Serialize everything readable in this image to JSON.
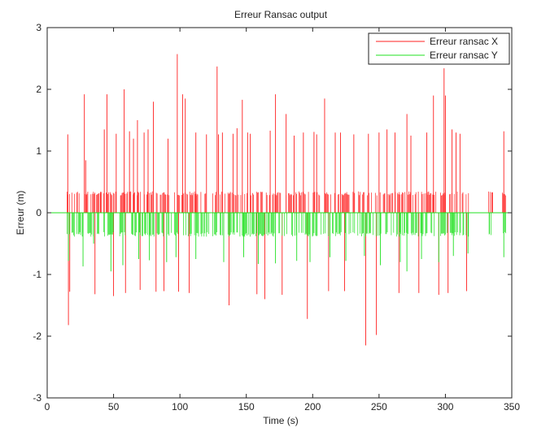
{
  "chart_data": {
    "type": "line",
    "title": "Erreur Ransac output",
    "xlabel": "Time (s)",
    "ylabel": "Erreur (m)",
    "xlim": [
      0,
      350
    ],
    "ylim": [
      -3,
      3
    ],
    "xticks": [
      0,
      50,
      100,
      150,
      200,
      250,
      300,
      350
    ],
    "yticks": [
      -3,
      -2,
      -1,
      0,
      1,
      2,
      3
    ],
    "grid": false,
    "legend_position": "top-right",
    "series": [
      {
        "name": "Erreur ransac X",
        "color": "#ff2020",
        "style": "spikes",
        "baseline": 0,
        "spikes": [
          [
            15.5,
            1.27
          ],
          [
            16,
            -1.82
          ],
          [
            17,
            -1.28
          ],
          [
            28,
            1.92
          ],
          [
            29,
            0.85
          ],
          [
            36,
            -1.32
          ],
          [
            40,
            0.32
          ],
          [
            43,
            1.35
          ],
          [
            45,
            1.92
          ],
          [
            50,
            -1.35
          ],
          [
            52,
            1.28
          ],
          [
            58,
            2.0
          ],
          [
            59,
            -1.3
          ],
          [
            62,
            1.32
          ],
          [
            65,
            1.2
          ],
          [
            68,
            1.5
          ],
          [
            70,
            -1.25
          ],
          [
            73,
            1.3
          ],
          [
            76,
            1.35
          ],
          [
            80,
            1.8
          ],
          [
            82,
            -1.28
          ],
          [
            88,
            -1.27
          ],
          [
            91,
            1.2
          ],
          [
            98,
            2.57
          ],
          [
            99,
            -1.28
          ],
          [
            102,
            1.92
          ],
          [
            104,
            1.85
          ],
          [
            107,
            -1.3
          ],
          [
            112,
            1.3
          ],
          [
            120,
            1.27
          ],
          [
            128,
            2.37
          ],
          [
            129,
            1.27
          ],
          [
            132,
            1.3
          ],
          [
            137,
            -1.5
          ],
          [
            140,
            1.28
          ],
          [
            143,
            1.37
          ],
          [
            147,
            1.83
          ],
          [
            151,
            1.3
          ],
          [
            153,
            1.28
          ],
          [
            158,
            -1.32
          ],
          [
            164,
            -1.4
          ],
          [
            168,
            1.33
          ],
          [
            172,
            1.92
          ],
          [
            177,
            -1.33
          ],
          [
            180,
            1.6
          ],
          [
            186,
            1.25
          ],
          [
            193,
            1.3
          ],
          [
            196,
            -1.72
          ],
          [
            201,
            1.31
          ],
          [
            203,
            1.27
          ],
          [
            209,
            1.85
          ],
          [
            212,
            -1.27
          ],
          [
            217,
            1.3
          ],
          [
            221,
            1.3
          ],
          [
            224,
            -1.27
          ],
          [
            231,
            1.27
          ],
          [
            240,
            -2.15
          ],
          [
            242,
            1.28
          ],
          [
            248,
            -1.98
          ],
          [
            250,
            1.3
          ],
          [
            256,
            1.35
          ],
          [
            262,
            1.3
          ],
          [
            265,
            -1.3
          ],
          [
            271,
            1.6
          ],
          [
            274,
            1.25
          ],
          [
            280,
            -1.3
          ],
          [
            286,
            1.3
          ],
          [
            291,
            1.9
          ],
          [
            295,
            -1.33
          ],
          [
            299,
            2.34
          ],
          [
            300,
            1.9
          ],
          [
            302,
            -1.3
          ],
          [
            305,
            1.35
          ],
          [
            308,
            1.3
          ],
          [
            311,
            1.28
          ],
          [
            316,
            -1.27
          ],
          [
            335,
            0.33
          ],
          [
            344,
            1.32
          ]
        ],
        "dense_range": [
          [
            15,
            318
          ],
          [
            332,
            336
          ],
          [
            343,
            346
          ]
        ],
        "dense_level": 0.33
      },
      {
        "name": "Erreur ransac Y",
        "color": "#20e020",
        "style": "spikes",
        "baseline": 0,
        "spikes": [
          [
            16,
            -0.78
          ],
          [
            27,
            -0.87
          ],
          [
            35,
            -0.5
          ],
          [
            48,
            -0.95
          ],
          [
            57,
            -0.85
          ],
          [
            69,
            -0.75
          ],
          [
            77,
            -0.77
          ],
          [
            90,
            -0.8
          ],
          [
            97,
            -0.72
          ],
          [
            112,
            -0.75
          ],
          [
            133,
            -0.8
          ],
          [
            148,
            -0.72
          ],
          [
            159,
            -0.83
          ],
          [
            172,
            -0.82
          ],
          [
            188,
            -0.78
          ],
          [
            198,
            -0.8
          ],
          [
            213,
            -0.72
          ],
          [
            225,
            -0.78
          ],
          [
            239,
            -0.7
          ],
          [
            251,
            -0.85
          ],
          [
            266,
            -0.8
          ],
          [
            271,
            -0.95
          ],
          [
            282,
            -0.75
          ],
          [
            295,
            -0.8
          ],
          [
            306,
            -0.7
          ],
          [
            317,
            -0.66
          ],
          [
            333,
            -0.35
          ],
          [
            344,
            -0.72
          ]
        ],
        "dense_range": [
          [
            15,
            318
          ],
          [
            332,
            336
          ],
          [
            343,
            346
          ]
        ],
        "dense_level": -0.37
      }
    ]
  }
}
